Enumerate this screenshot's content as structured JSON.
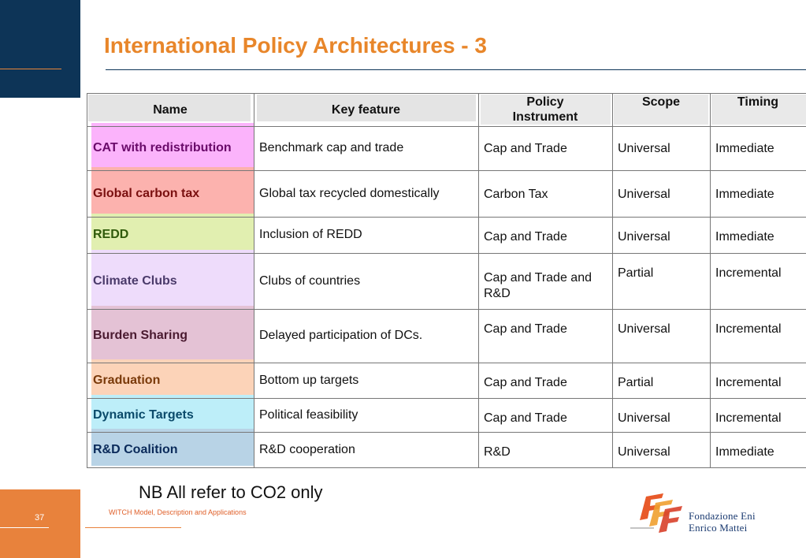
{
  "title": "International Policy Architectures - 3",
  "page_number": "37",
  "footer": "WITCH Model, Description and Applications",
  "note": "NB All refer to CO2 only",
  "logo": {
    "line1": "Fondazione Eni",
    "line2": "Enrico Mattei"
  },
  "table": {
    "headers": {
      "name": "Name",
      "key_feature": "Key feature",
      "policy_instrument": "Policy Instrument",
      "scope": "Scope",
      "timing": "Timing"
    },
    "rows": [
      {
        "name": "CAT with redistribution",
        "key_feature": "Benchmark cap and trade",
        "policy_instrument": "Cap and Trade",
        "scope": "Universal",
        "timing": "Immediate",
        "color": "#fbb3fb",
        "text_color": "#6a0a6a"
      },
      {
        "name": "Global carbon tax",
        "key_feature": "Global tax recycled domestically",
        "policy_instrument": "Carbon Tax",
        "scope": "Universal",
        "timing": "Immediate",
        "color": "#fcb2ae",
        "text_color": "#7a1010"
      },
      {
        "name": "REDD",
        "key_feature": "Inclusion of REDD",
        "policy_instrument": "Cap and Trade",
        "scope": "Universal",
        "timing": "Immediate",
        "color": "#e1efb0",
        "text_color": "#2f5a0a"
      },
      {
        "name": "Climate Clubs",
        "key_feature": "Clubs of countries",
        "policy_instrument": "Cap and Trade and R&D",
        "scope": "Partial",
        "timing": "Incremental",
        "color": "#eedcfb",
        "text_color": "#4a3a6a"
      },
      {
        "name": "Burden Sharing",
        "key_feature": "Delayed participation of DCs.",
        "policy_instrument": "Cap and Trade",
        "scope": "Universal",
        "timing": "Incremental",
        "color": "#e4c2d5",
        "text_color": "#4a1a30"
      },
      {
        "name": "Graduation",
        "key_feature": "Bottom up targets",
        "policy_instrument": "Cap and Trade",
        "scope": "Partial",
        "timing": "Incremental",
        "color": "#fcd3b8",
        "text_color": "#7a3a0a"
      },
      {
        "name": "Dynamic Targets",
        "key_feature": "Political feasibility",
        "policy_instrument": "Cap and Trade",
        "scope": "Universal",
        "timing": "Incremental",
        "color": "#bdeef9",
        "text_color": "#0a4a6a"
      },
      {
        "name": "R&D Coalition",
        "key_feature": "R&D cooperation",
        "policy_instrument": "R&D",
        "scope": "Universal",
        "timing": "Immediate",
        "color": "#b8d3e6",
        "text_color": "#0a2a5a"
      }
    ]
  }
}
